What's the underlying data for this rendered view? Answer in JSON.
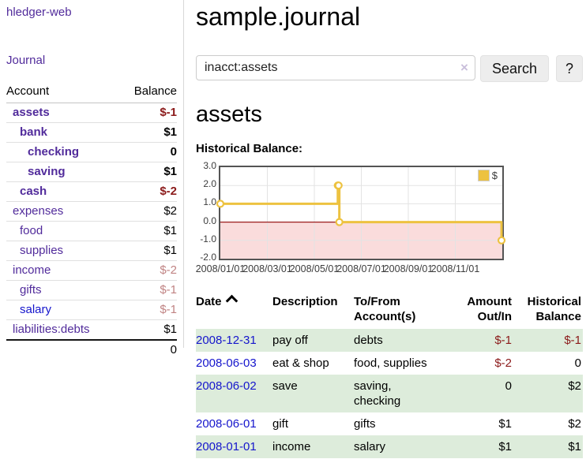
{
  "app": {
    "title": "hledger-web"
  },
  "sidebar": {
    "journal_label": "Journal",
    "accounts": {
      "header": {
        "account": "Account",
        "balance": "Balance"
      },
      "rows": [
        {
          "label": "assets",
          "balance": "$-1",
          "indent": 1,
          "bold": true,
          "color": "purple",
          "balance_style": "neg-strong"
        },
        {
          "label": "bank",
          "balance": "$1",
          "indent": 2,
          "bold": true,
          "color": "purple",
          "balance_style": "normal"
        },
        {
          "label": "checking",
          "balance": "0",
          "indent": 3,
          "bold": true,
          "color": "purple",
          "balance_style": "normal"
        },
        {
          "label": "saving",
          "balance": "$1",
          "indent": 3,
          "bold": true,
          "color": "purple",
          "balance_style": "normal"
        },
        {
          "label": "cash",
          "balance": "$-2",
          "indent": 2,
          "bold": true,
          "color": "purple",
          "balance_style": "neg-strong"
        },
        {
          "label": "expenses",
          "balance": "$2",
          "indent": 1,
          "bold": false,
          "color": "purple",
          "balance_style": "normal"
        },
        {
          "label": "food",
          "balance": "$1",
          "indent": 2,
          "bold": false,
          "color": "purple",
          "balance_style": "normal"
        },
        {
          "label": "supplies",
          "balance": "$1",
          "indent": 2,
          "bold": false,
          "color": "purple",
          "balance_style": "normal"
        },
        {
          "label": "income",
          "balance": "$-2",
          "indent": 1,
          "bold": false,
          "color": "purple",
          "balance_style": "neg-muted"
        },
        {
          "label": "gifts",
          "balance": "$-1",
          "indent": 2,
          "bold": false,
          "color": "purple",
          "balance_style": "neg-muted"
        },
        {
          "label": "salary",
          "balance": "$-1",
          "indent": 2,
          "bold": false,
          "color": "blue",
          "balance_style": "neg-muted"
        },
        {
          "label": "liabilities:debts",
          "balance": "$1",
          "indent": 1,
          "bold": false,
          "color": "purple",
          "balance_style": "normal"
        }
      ],
      "total": "0"
    }
  },
  "main": {
    "title": "sample.journal",
    "search": {
      "value": "inacct:assets",
      "clear_icon": "×",
      "button_label": "Search",
      "help_label": "?"
    },
    "account_heading": "assets",
    "chart_title": "Historical Balance:"
  },
  "chart_data": {
    "type": "line",
    "title": "Historical Balance:",
    "series": [
      {
        "name": "$",
        "color": "#edc240",
        "points": [
          [
            "2008-01-01",
            1
          ],
          [
            "2008-06-01",
            2
          ],
          [
            "2008-06-02",
            2
          ],
          [
            "2008-06-03",
            0
          ],
          [
            "2008-12-31",
            -1
          ]
        ]
      }
    ],
    "ylim": [
      -2,
      3
    ],
    "yticks": [
      3.0,
      2.0,
      1.0,
      0.0,
      -1.0,
      -2.0
    ],
    "xticks": [
      "2008/01/01",
      "2008/03/01",
      "2008/05/01",
      "2008/07/01",
      "2008/09/01",
      "2008/11/01"
    ],
    "x_range": [
      "2008/01/01",
      "2009/01/01"
    ],
    "grid": true,
    "legend_position": "top-right",
    "step_line": true,
    "zero_line_color": "#9b1c1c",
    "negative_region_color": "#fadcdc",
    "gridline_color": "#e3e3e3",
    "border_color": "#545454"
  },
  "register": {
    "headers": {
      "date": "Date",
      "sort_icon": "caret-up",
      "description": "Description",
      "tofrom": "To/From\nAccount(s)",
      "amount": "Amount\nOut/In",
      "historical": "Historical\nBalance"
    },
    "rows": [
      {
        "date": "2008-12-31",
        "description": "pay off",
        "accounts": "debts",
        "amount": "$-1",
        "amount_negative": true,
        "balance": "$-1",
        "balance_negative": true
      },
      {
        "date": "2008-06-03",
        "description": "eat & shop",
        "accounts": "food, supplies",
        "amount": "$-2",
        "amount_negative": true,
        "balance": "0",
        "balance_negative": false
      },
      {
        "date": "2008-06-02",
        "description": "save",
        "accounts": "saving,\nchecking",
        "amount": "0",
        "amount_negative": false,
        "balance": "$2",
        "balance_negative": false
      },
      {
        "date": "2008-06-01",
        "description": "gift",
        "accounts": "gifts",
        "amount": "$1",
        "amount_negative": false,
        "balance": "$2",
        "balance_negative": false
      },
      {
        "date": "2008-01-01",
        "description": "income",
        "accounts": "salary",
        "amount": "$1",
        "amount_negative": false,
        "balance": "$1",
        "balance_negative": false
      }
    ]
  }
}
